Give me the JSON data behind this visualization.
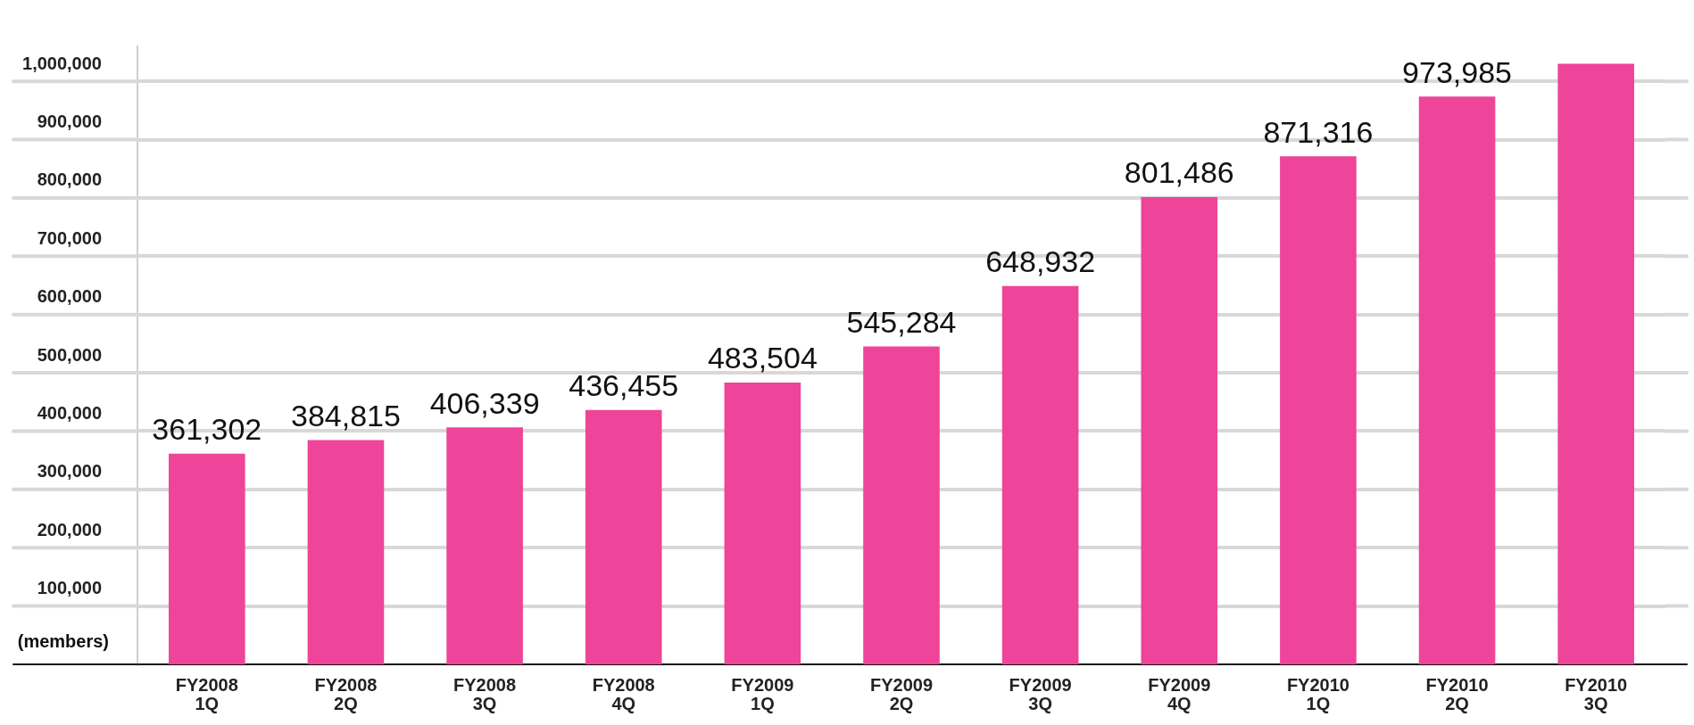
{
  "chart_data": {
    "type": "bar",
    "ylabel": "(members)",
    "categories": [
      "FY2008\n1Q",
      "FY2008\n2Q",
      "FY2008\n3Q",
      "FY2008\n4Q",
      "FY2009\n1Q",
      "FY2009\n2Q",
      "FY2009\n3Q",
      "FY2009\n4Q",
      "FY2010\n1Q",
      "FY2010\n2Q",
      "FY2010\n3Q"
    ],
    "values": [
      361302,
      384815,
      406339,
      436455,
      483504,
      545284,
      648932,
      801486,
      871316,
      973985,
      1030000
    ],
    "value_labels": [
      "361,302",
      "384,815",
      "406,339",
      "436,455",
      "483,504",
      "545,284",
      "648,932",
      "801,486",
      "871,316",
      "973,985",
      null
    ],
    "color": "#ee4499",
    "ylim": [
      0,
      1060000
    ],
    "yticks": [
      {
        "value": 100000,
        "label": "100,000"
      },
      {
        "value": 200000,
        "label": "200,000"
      },
      {
        "value": 300000,
        "label": "300,000"
      },
      {
        "value": 400000,
        "label": "400,000"
      },
      {
        "value": 500000,
        "label": "500,000"
      },
      {
        "value": 600000,
        "label": "600,000"
      },
      {
        "value": 700000,
        "label": "700,000"
      },
      {
        "value": 800000,
        "label": "800,000"
      },
      {
        "value": 900000,
        "label": "900,000"
      },
      {
        "value": 1000000,
        "label": "1,000,000"
      }
    ],
    "grid": "y"
  }
}
